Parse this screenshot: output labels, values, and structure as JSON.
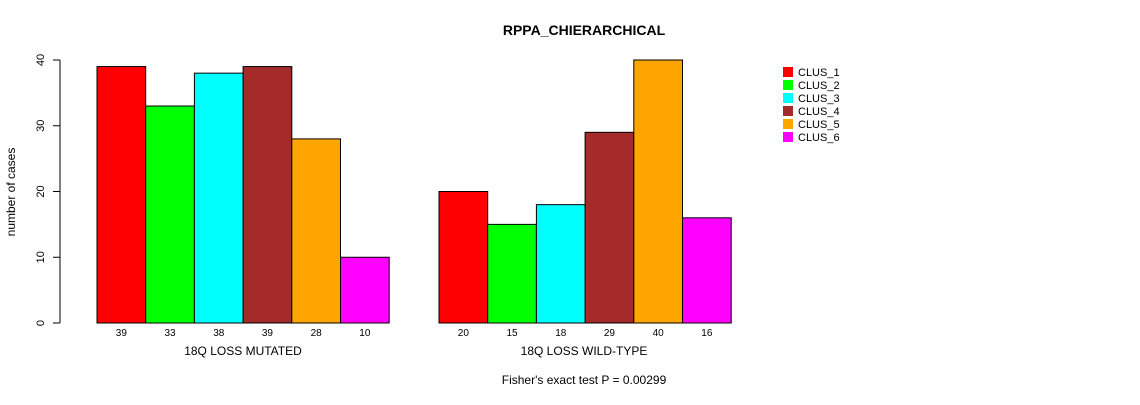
{
  "chart_data": {
    "type": "bar",
    "title": "RPPA_CHIERARCHICAL",
    "ylabel": "number of cases",
    "ylim": [
      0,
      40
    ],
    "yticks": [
      0,
      10,
      20,
      30,
      40
    ],
    "groups": [
      "18Q LOSS MUTATED",
      "18Q LOSS WILD-TYPE"
    ],
    "series": [
      {
        "name": "CLUS_1",
        "color": "#ff0000",
        "values": [
          39,
          20
        ]
      },
      {
        "name": "CLUS_2",
        "color": "#00ff00",
        "values": [
          33,
          15
        ]
      },
      {
        "name": "CLUS_3",
        "color": "#00ffff",
        "values": [
          38,
          18
        ]
      },
      {
        "name": "CLUS_4",
        "color": "#a52a2a",
        "values": [
          39,
          29
        ]
      },
      {
        "name": "CLUS_5",
        "color": "#ffa500",
        "values": [
          28,
          40
        ]
      },
      {
        "name": "CLUS_6",
        "color": "#ff00ff",
        "values": [
          10,
          16
        ]
      }
    ],
    "legend_position": "top-right",
    "footnote": "Fisher's exact test P = 0.00299"
  }
}
